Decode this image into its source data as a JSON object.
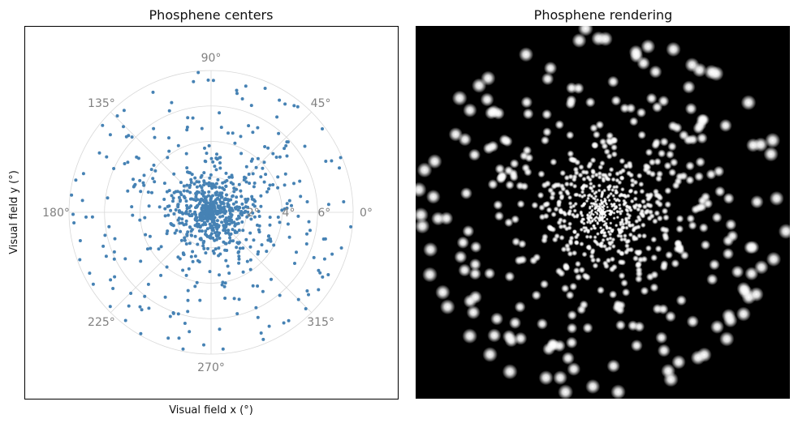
{
  "chart_data": [
    {
      "type": "scatter",
      "projection": "polar",
      "title": "Phosphene centers",
      "xlabel": "Visual field x (°)",
      "ylabel": "Visual field y (°)",
      "rlim": [
        0,
        8
      ],
      "radial_ticks": [
        "2°",
        "4°",
        "6°"
      ],
      "angular_ticks": [
        "0°",
        "45°",
        "90°",
        "135°",
        "180°",
        "225°",
        "270°",
        "315°"
      ],
      "grid": true,
      "marker_color": "#4682b4",
      "n_points": 900,
      "density": "dense near fovea (center), sparser with eccentricity"
    },
    {
      "type": "heatmap",
      "title": "Phosphene rendering",
      "background_color": "#000000",
      "spot_color": "#ffffff",
      "description_basis": "same phosphene centers rendered as glowing spots; spot size grows with eccentricity"
    }
  ]
}
